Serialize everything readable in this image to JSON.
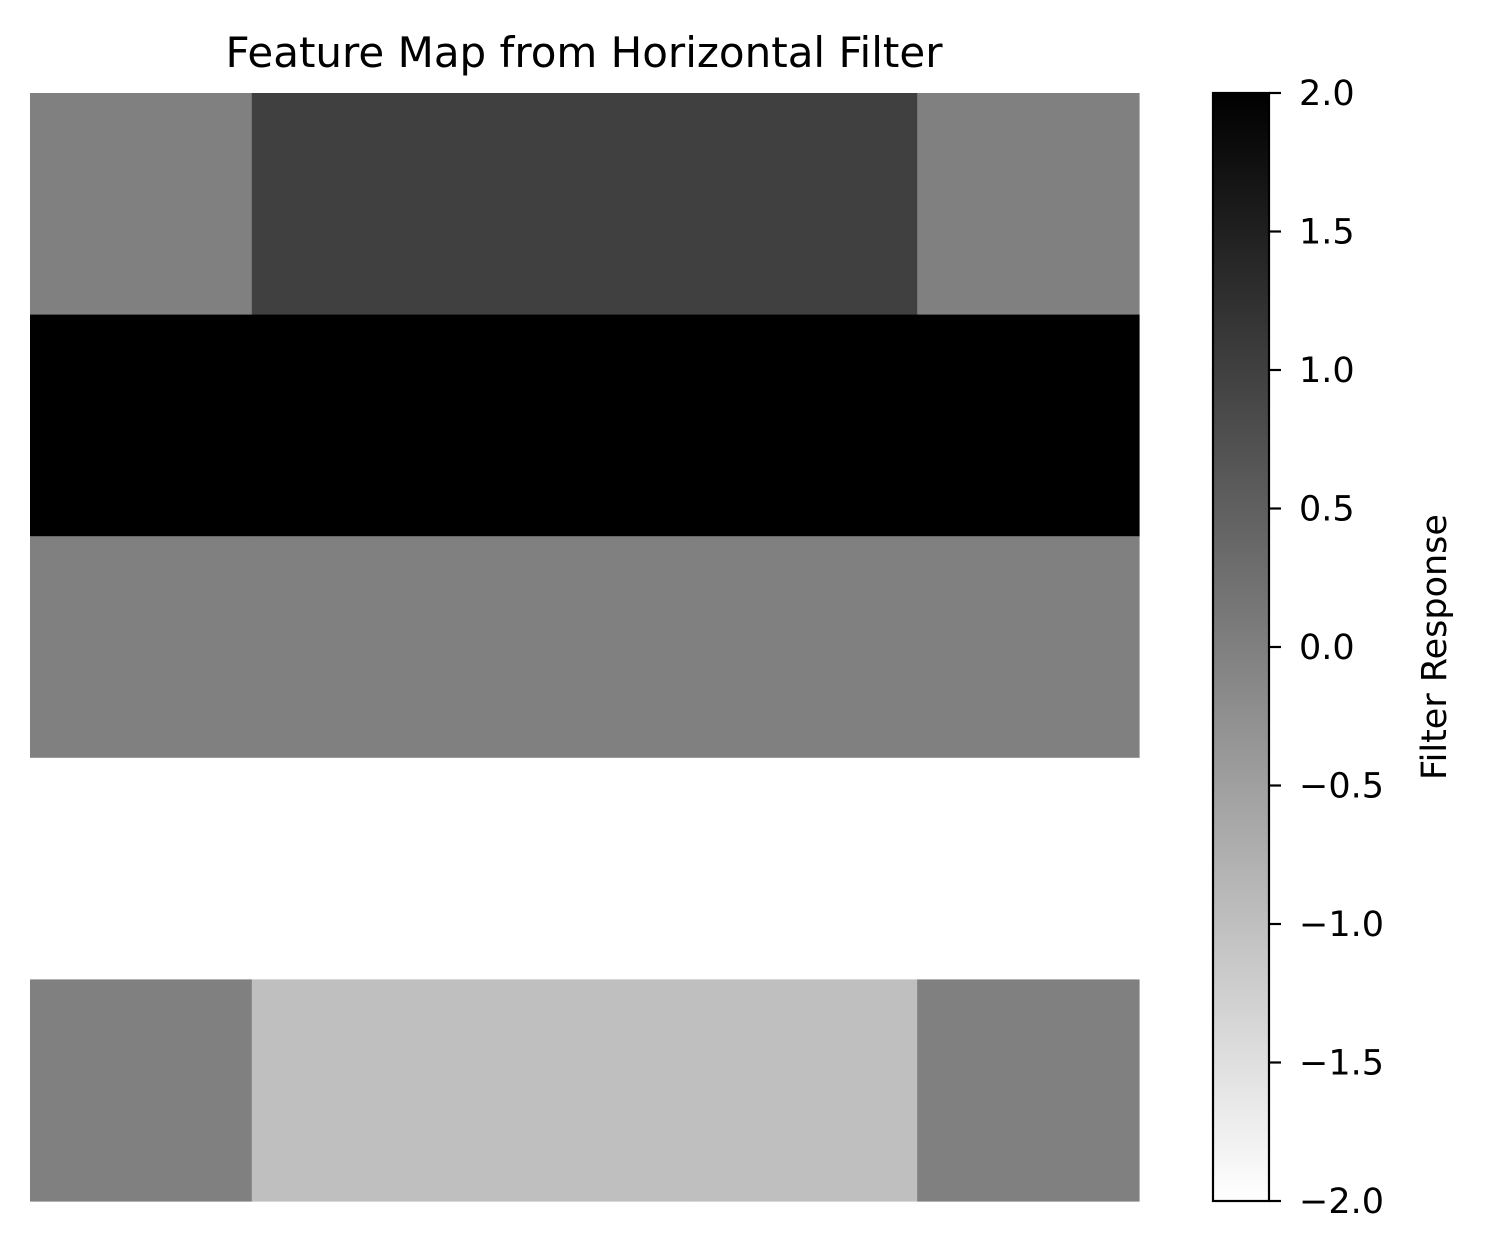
{
  "chart_data": {
    "type": "heatmap",
    "title": "Feature Map from Horizontal Filter",
    "rows": 5,
    "cols": 5,
    "values": [
      [
        0,
        1,
        1,
        1,
        0
      ],
      [
        2,
        2,
        2,
        2,
        2
      ],
      [
        0,
        0,
        0,
        0,
        0
      ],
      [
        -2,
        -2,
        -2,
        -2,
        -2
      ],
      [
        0,
        -1,
        -1,
        -1,
        0
      ]
    ],
    "colormap": "gray_r",
    "vmin": -2,
    "vmax": 2,
    "colorbar": {
      "label": "Filter Response",
      "ticks": [
        2.0,
        1.5,
        1.0,
        0.5,
        0.0,
        -0.5,
        -1.0,
        -1.5,
        -2.0
      ],
      "tick_labels": [
        "2.0",
        "1.5",
        "1.0",
        "0.5",
        "0.0",
        "−0.5",
        "−1.0",
        "−1.5",
        "−2.0"
      ]
    },
    "axes_visible": false
  }
}
